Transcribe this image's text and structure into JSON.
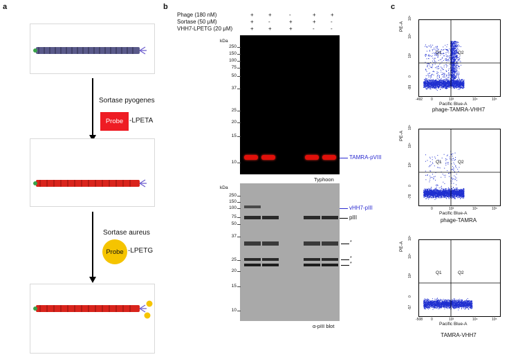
{
  "panel_a": {
    "letter": "a",
    "step1_label": "Sortase pyogenes",
    "step1_probe": "Probe",
    "step1_tag": "-LPETA",
    "step2_label": "Sortase aureus",
    "step2_probe": "Probe",
    "step2_tag": "-LPETG",
    "colors": {
      "phage_plain": "#5a5a8a",
      "phage_labeled": "#d9241c",
      "probe_a": "#ee1c24",
      "probe_b": "#f5c400"
    }
  },
  "panel_b": {
    "letter": "b",
    "conditions": [
      {
        "name": "Phage (180 nM)",
        "lanes": [
          "+",
          "+",
          "-",
          "+",
          "+"
        ]
      },
      {
        "name": "Sortase (50 μM)",
        "lanes": [
          "+",
          "-",
          "+",
          "+",
          "-"
        ]
      },
      {
        "name": "VHH7-LPETG (20 μM)",
        "lanes": [
          "+",
          "+",
          "+",
          "-",
          "-"
        ]
      }
    ],
    "gel_top": {
      "kda_unit": "kDa",
      "markers": [
        "250",
        "150",
        "100",
        "75",
        "50",
        "37",
        "25",
        "20",
        "15",
        "10"
      ],
      "band_label": "TAMRA-pVIII",
      "caption": "Typhoon"
    },
    "gel_bottom": {
      "kda_unit": "kDa",
      "markers": [
        "250",
        "150",
        "100",
        "75",
        "50",
        "37",
        "25",
        "20",
        "15",
        "10"
      ],
      "band_label_blue": "vHH7-pIII",
      "band_label_piii": "pIII",
      "star": "*",
      "caption": "α-pIII blot"
    }
  },
  "panel_c": {
    "letter": "c",
    "plots": [
      {
        "caption": "phage-TAMRA-VHH7",
        "q1": "Q1",
        "q2": "Q2",
        "x_label": "Pacific Blue-A",
        "y_label": "PE-A",
        "x_ticks": [
          "-492",
          "0",
          "10³",
          "10⁴",
          "10⁵"
        ],
        "y_ticks": [
          "10⁵",
          "10⁴",
          "10³",
          "0",
          "-99"
        ]
      },
      {
        "caption": "phage-TAMRA",
        "q1": "Q1",
        "q2": "Q2",
        "x_label": "Pacific Blue-A",
        "y_label": "PE-A",
        "x_ticks": [
          "0",
          "10³",
          "10⁴",
          "10⁵"
        ],
        "y_ticks": [
          "10⁵",
          "10⁴",
          "10³",
          "0",
          "-78"
        ]
      },
      {
        "caption": "TAMRA-VHH7",
        "q1": "Q1",
        "q2": "Q2",
        "x_label": "Pacific Blue-A",
        "y_label": "PE-A",
        "x_ticks": [
          "-508",
          "0",
          "10³",
          "10⁴",
          "10⁵"
        ],
        "y_ticks": [
          "10⁵",
          "10⁴",
          "10³",
          "0",
          "-57"
        ]
      }
    ]
  }
}
